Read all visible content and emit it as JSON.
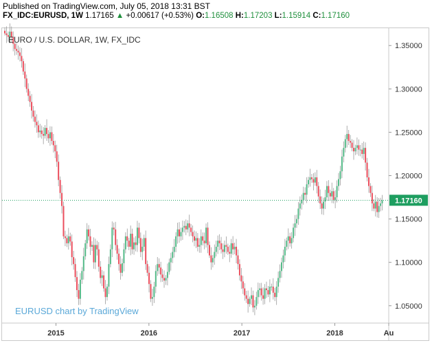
{
  "header": {
    "published": "Published on TradingView.com, July 05, 2018 13:31 BST",
    "symbol": "FX_IDC:EURUSD, 1W",
    "last": "1.17165",
    "arrow": "▲",
    "change": "+0.00617 (+0.53%)",
    "o_label": "O:",
    "o_value": "1.16508",
    "h_label": "H:",
    "h_value": "1.17203",
    "l_label": "L:",
    "l_value": "1.15914",
    "c_label": "C:",
    "c_value": "1.17160"
  },
  "chart_title": "EURO / U.S. DOLLAR, 1W, FX_IDC",
  "watermark": "EURUSD chart by TradingView",
  "chart_data": {
    "type": "candlestick",
    "interval": "1W",
    "colors": {
      "up": "#53b987",
      "down": "#eb4d5c",
      "wick": "#999999",
      "last_price": "#1e9e60"
    },
    "ylim": [
      1.03,
      1.37
    ],
    "y_ticks": [
      "1.35000",
      "1.30000",
      "1.25000",
      "1.20000",
      "1.15000",
      "1.10000",
      "1.05000"
    ],
    "x_ticks": [
      {
        "label": "2015",
        "x": 2015.0
      },
      {
        "label": "2016",
        "x": 2016.0
      },
      {
        "label": "2017",
        "x": 2017.0
      },
      {
        "label": "2018",
        "x": 2018.0
      },
      {
        "label": "Au",
        "x": 2018.58
      }
    ],
    "x_range": [
      2014.42,
      2018.58
    ],
    "last_price": 1.1716,
    "last_price_label": "1.17160",
    "closes": [
      1.364,
      1.362,
      1.36,
      1.366,
      1.36,
      1.352,
      1.346,
      1.344,
      1.342,
      1.338,
      1.332,
      1.32,
      1.312,
      1.3,
      1.292,
      1.285,
      1.275,
      1.268,
      1.262,
      1.258,
      1.25,
      1.252,
      1.248,
      1.246,
      1.255,
      1.248,
      1.243,
      1.25,
      1.24,
      1.235,
      1.228,
      1.216,
      1.195,
      1.18,
      1.165,
      1.13,
      1.128,
      1.122,
      1.13,
      1.124,
      1.106,
      1.098,
      1.083,
      1.068,
      1.058,
      1.08,
      1.09,
      1.107,
      1.122,
      1.138,
      1.13,
      1.118,
      1.12,
      1.1,
      1.12,
      1.115,
      1.095,
      1.082,
      1.085,
      1.07,
      1.06,
      1.072,
      1.098,
      1.115,
      1.14,
      1.138,
      1.12,
      1.11,
      1.098,
      1.088,
      1.099,
      1.115,
      1.13,
      1.125,
      1.118,
      1.133,
      1.115,
      1.123,
      1.12,
      1.14,
      1.128,
      1.112,
      1.118,
      1.128,
      1.098,
      1.088,
      1.075,
      1.058,
      1.06,
      1.072,
      1.09,
      1.098,
      1.094,
      1.086,
      1.082,
      1.079,
      1.082,
      1.089,
      1.1,
      1.105,
      1.112,
      1.118,
      1.13,
      1.138,
      1.13,
      1.135,
      1.14,
      1.142,
      1.138,
      1.145,
      1.14,
      1.135,
      1.13,
      1.125,
      1.128,
      1.118,
      1.12,
      1.13,
      1.125,
      1.122,
      1.14,
      1.12,
      1.108,
      1.1,
      1.105,
      1.112,
      1.118,
      1.125,
      1.122,
      1.115,
      1.112,
      1.12,
      1.118,
      1.112,
      1.11,
      1.122,
      1.115,
      1.118,
      1.108,
      1.098,
      1.085,
      1.078,
      1.07,
      1.062,
      1.058,
      1.052,
      1.058,
      1.062,
      1.048,
      1.05,
      1.06,
      1.068,
      1.07,
      1.062,
      1.058,
      1.07,
      1.068,
      1.063,
      1.072,
      1.072,
      1.065,
      1.06,
      1.072,
      1.082,
      1.09,
      1.1,
      1.108,
      1.118,
      1.125,
      1.13,
      1.122,
      1.128,
      1.14,
      1.145,
      1.15,
      1.162,
      1.168,
      1.172,
      1.18,
      1.178,
      1.19,
      1.195,
      1.198,
      1.196,
      1.192,
      1.198,
      1.188,
      1.176,
      1.168,
      1.162,
      1.17,
      1.175,
      1.188,
      1.18,
      1.176,
      1.182,
      1.172,
      1.175,
      1.188,
      1.196,
      1.205,
      1.222,
      1.232,
      1.242,
      1.248,
      1.24,
      1.238,
      1.232,
      1.228,
      1.232,
      1.235,
      1.23,
      1.23,
      1.225,
      1.232,
      1.215,
      1.198,
      1.188,
      1.18,
      1.168,
      1.162,
      1.17,
      1.158,
      1.165,
      1.168,
      1.1716
    ]
  }
}
